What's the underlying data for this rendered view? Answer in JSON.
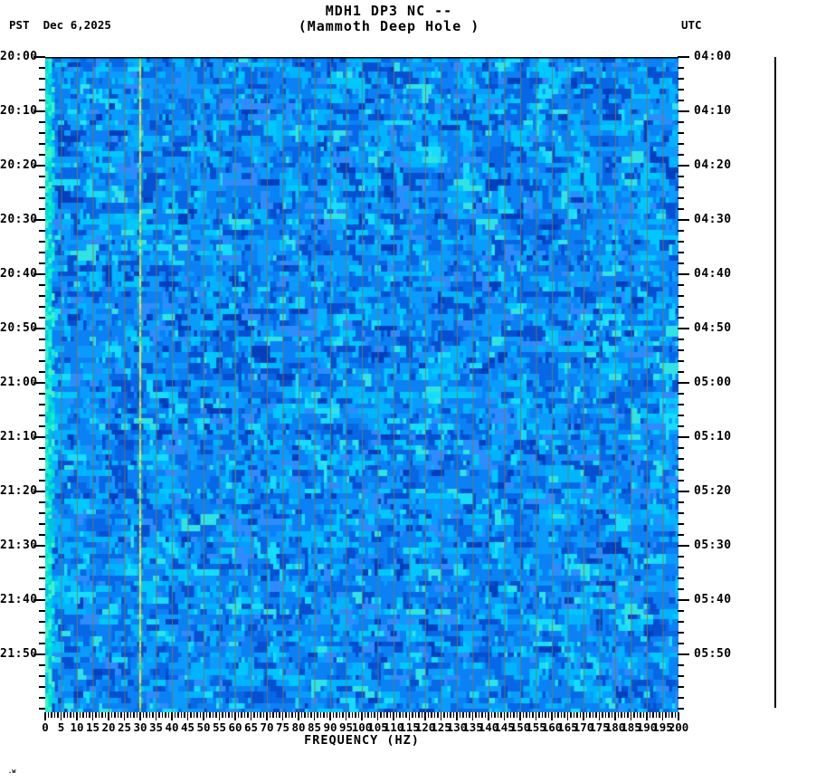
{
  "header": {
    "title": "MDH1 DP3 NC --",
    "subtitle": "(Mammoth Deep Hole )",
    "left_label": "PST  Dec 6,2025",
    "right_label": "UTC"
  },
  "watermark": ".w",
  "chart_data": {
    "type": "heatmap",
    "title": "MDH1 DP3 NC --",
    "subtitle": "(Mammoth Deep Hole )",
    "station": "MDH1 DP3 NC",
    "station_name": "Mammoth Deep Hole",
    "date": "Dec 6,2025",
    "xlabel": "FREQUENCY (HZ)",
    "x_range": [
      0,
      200
    ],
    "x_tick_step_hz": 5,
    "x_minor_tick_step_hz": 1,
    "x_ticks": [
      0,
      5,
      10,
      15,
      20,
      25,
      30,
      35,
      40,
      45,
      50,
      55,
      60,
      65,
      70,
      75,
      80,
      85,
      90,
      95,
      100,
      105,
      110,
      115,
      120,
      125,
      130,
      135,
      140,
      145,
      150,
      155,
      160,
      165,
      170,
      175,
      180,
      185,
      190,
      195,
      200
    ],
    "left_axis": {
      "timezone": "PST",
      "ticks": [
        "20:00",
        "20:10",
        "20:20",
        "20:30",
        "20:40",
        "20:50",
        "21:00",
        "21:10",
        "21:20",
        "21:30",
        "21:40",
        "21:50"
      ],
      "major_step_minutes": 10,
      "minor_step_minutes": 2
    },
    "right_axis": {
      "timezone": "UTC",
      "ticks": [
        "04:00",
        "04:10",
        "04:20",
        "04:30",
        "04:40",
        "04:50",
        "05:00",
        "05:10",
        "05:20",
        "05:30",
        "05:40",
        "05:50"
      ],
      "major_step_minutes": 10,
      "minor_step_minutes": 2
    },
    "time_span_minutes": 120,
    "legend": "none",
    "grid": {
      "every_hz": 5,
      "color": "rgba(118,122,92,0.85)"
    },
    "palette": [
      {
        "color": "#0a82f5",
        "weight": 24
      },
      {
        "color": "#0a9bff",
        "weight": 18
      },
      {
        "color": "#0668e6",
        "weight": 14
      },
      {
        "color": "#00b4ff",
        "weight": 12
      },
      {
        "color": "#0550d2",
        "weight": 8
      },
      {
        "color": "#00c8ff",
        "weight": 8
      },
      {
        "color": "#2e8cff",
        "weight": 6
      },
      {
        "color": "#16ddff",
        "weight": 4
      },
      {
        "color": "#0040bf",
        "weight": 3
      },
      {
        "color": "#31e3e3",
        "weight": 3
      }
    ],
    "low_freq_band": {
      "range_hz": [
        0,
        2
      ],
      "colors": [
        "#00e0cf",
        "#14edd6",
        "#00cfe8",
        "#41f0c9",
        "#00bfe0"
      ]
    },
    "spectral_lines": [
      {
        "freq_hz": 30,
        "colors": [
          "#cfe139",
          "#b9d945",
          "#e3e35b",
          "#9fd44e",
          "#6cc46a",
          "#e8ea48"
        ]
      },
      {
        "freq_hz": 60,
        "colors": [
          "rgba(20,170,150,0.55)",
          "rgba(60,190,140,0.40)",
          "rgba(40,160,180,0.45)"
        ]
      }
    ],
    "description": "Seismic spectrogram: blue background noise, 20:00-22:00 PST / 04:00-06:00 UTC, narrow yellow-green spectral line near 30 Hz, faint teal line at 60 Hz, bright cyan microseism band below 2 Hz"
  }
}
